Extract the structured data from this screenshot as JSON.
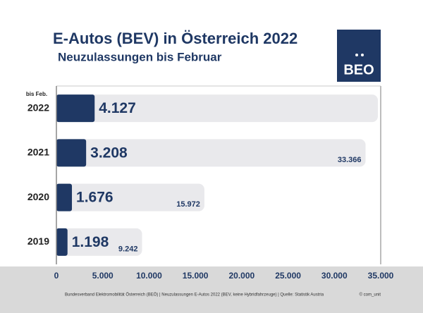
{
  "chart_data": {
    "type": "barh",
    "title": "E-Autos (BEV) in Österreich 2022",
    "subtitle": "Neuzulassungen bis Februar",
    "logo": "BEO",
    "category_note": "bis Feb.",
    "categories": [
      "2022",
      "2021",
      "2020",
      "2019"
    ],
    "series": [
      {
        "color": "#1f3864",
        "values": [
          4127,
          3208,
          1676,
          1198
        ],
        "value_labels": [
          "4.127",
          "3.208",
          "1.676",
          "1.198"
        ]
      },
      {
        "color": "#e9e9ec",
        "values": [
          null,
          33366,
          15972,
          9242
        ],
        "value_labels": [
          null,
          "33.366",
          "15.972",
          "9.242"
        ]
      }
    ],
    "xlim": [
      0,
      35000
    ],
    "xticks": [
      0,
      {
        "value": 5000,
        "label": "5.000"
      },
      {
        "value": 10000,
        "label": "10.000"
      },
      {
        "value": 15000,
        "label": "15.000"
      },
      {
        "value": 20000,
        "label": "20.000"
      },
      {
        "value": 25000,
        "label": "25.000"
      },
      {
        "value": 30000,
        "label": "30.000"
      },
      {
        "value": 35000,
        "label": "35.000"
      }
    ],
    "source": "Bundesverband Elektromobilität Österreich (BEÖ) | Neuzulassungen E-Autos 2022 (BEV, keine Hybridfahrzeuge) | Quelle: Statistik Austria",
    "credit": "© com_unit"
  }
}
